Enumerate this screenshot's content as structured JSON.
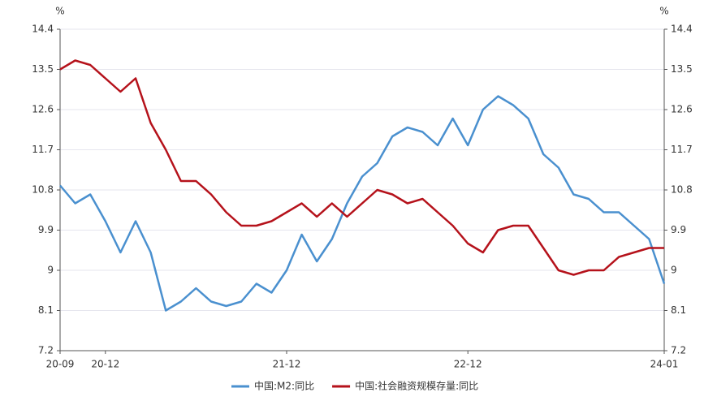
{
  "chart_data": {
    "type": "line",
    "y_unit": "%",
    "y2_unit": "%",
    "categories": [
      "20-09",
      null,
      null,
      "20-12",
      null,
      null,
      null,
      null,
      null,
      null,
      null,
      null,
      null,
      null,
      null,
      "21-12",
      null,
      null,
      null,
      null,
      null,
      null,
      null,
      null,
      null,
      null,
      null,
      "22-12",
      null,
      null,
      null,
      null,
      null,
      null,
      null,
      null,
      null,
      null,
      null,
      null,
      "24-01"
    ],
    "series": [
      {
        "name": "中国:M2:同比",
        "color": "#4a90cf",
        "values": [
          10.9,
          10.5,
          10.7,
          10.1,
          9.4,
          10.1,
          9.4,
          8.1,
          8.3,
          8.6,
          8.3,
          8.2,
          8.3,
          8.7,
          8.5,
          9.0,
          9.8,
          9.2,
          9.7,
          10.5,
          11.1,
          11.4,
          12.0,
          12.2,
          12.1,
          11.8,
          12.4,
          11.8,
          12.6,
          12.9,
          12.7,
          12.4,
          11.6,
          11.3,
          10.7,
          10.6,
          10.3,
          10.3,
          10.0,
          9.7,
          8.7
        ]
      },
      {
        "name": "中国:社会融资规模存量:同比",
        "color": "#b5121b",
        "values": [
          13.5,
          13.7,
          13.6,
          13.3,
          13.0,
          13.3,
          12.3,
          11.7,
          11.0,
          11.0,
          10.7,
          10.3,
          10.0,
          10.0,
          10.1,
          10.3,
          10.5,
          10.2,
          10.5,
          10.2,
          10.5,
          10.8,
          10.7,
          10.5,
          10.6,
          10.3,
          10.0,
          9.6,
          9.4,
          9.9,
          10.0,
          10.0,
          9.5,
          9.0,
          8.9,
          9.0,
          9.0,
          9.3,
          9.4,
          9.5,
          9.5
        ]
      }
    ],
    "ylim": [
      7.2,
      14.4
    ],
    "yticks": [
      7.2,
      8.1,
      9,
      9.9,
      10.8,
      11.7,
      12.6,
      13.5,
      14.4
    ],
    "y2lim": [
      7.2,
      14.4
    ],
    "y2ticks": [
      7.2,
      8.1,
      9,
      9.9,
      10.8,
      11.7,
      12.6,
      13.5,
      14.4
    ],
    "grid": true
  }
}
